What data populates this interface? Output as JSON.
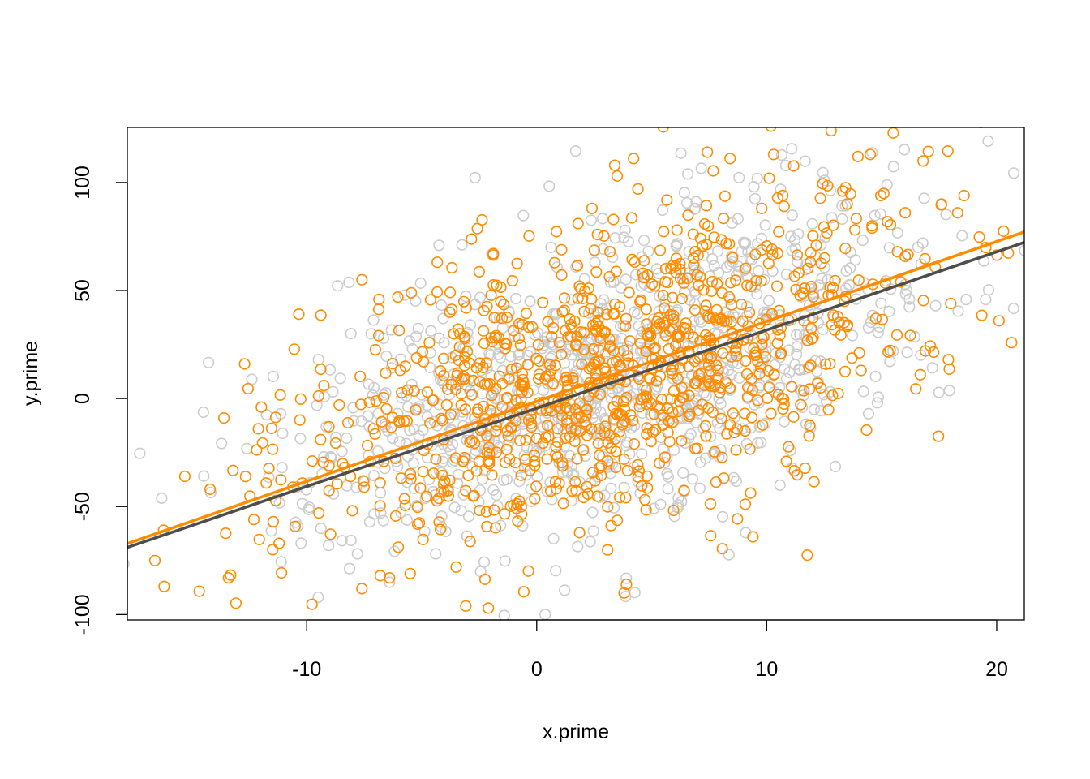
{
  "chart_data": {
    "type": "scatter",
    "title": "",
    "xlabel": "x.prime",
    "ylabel": "y.prime",
    "xlim": [
      -17.8,
      21.2
    ],
    "ylim": [
      -102.5,
      125.5
    ],
    "x_ticks": [
      -10,
      0,
      10,
      20
    ],
    "y_ticks": [
      -100,
      -50,
      0,
      50,
      100
    ],
    "grid": false,
    "legend": "none",
    "series": [
      {
        "color": "#cccccc",
        "marker": "open-circle",
        "n_points": 1000,
        "center": [
          3.2,
          12
        ],
        "sd": [
          6.8,
          40
        ],
        "correlation": 0.55,
        "seed": 7,
        "fit_line": {
          "slope": 3.62,
          "intercept": -4.5,
          "color": "#4d4d4d"
        }
      },
      {
        "color": "#ff8c00",
        "marker": "open-circle",
        "n_points": 1000,
        "center": [
          3.2,
          12
        ],
        "sd": [
          6.8,
          40
        ],
        "correlation": 0.52,
        "seed": 31,
        "fit_line": {
          "slope": 3.7,
          "intercept": -1.3,
          "color": "#ff8c00"
        },
        "extra_points": [
          [
            -16.6,
            -75
          ],
          [
            -16.2,
            -87
          ],
          [
            -15.3,
            -36
          ],
          [
            -14.2,
            -42
          ],
          [
            -13.6,
            -9
          ],
          [
            -13.4,
            -83
          ],
          [
            -12.7,
            16
          ],
          [
            -12.3,
            -56
          ],
          [
            -12.1,
            -14
          ],
          [
            -11.2,
            -67
          ],
          [
            -10.6,
            -41
          ],
          [
            -7.6,
            55
          ],
          [
            -7.6,
            -88
          ],
          [
            -6.8,
            -82
          ],
          [
            -6.4,
            -83
          ],
          [
            -5.5,
            -81
          ],
          [
            -3.5,
            -78
          ],
          [
            -2.1,
            -97
          ],
          [
            1.8,
            81
          ],
          [
            2.4,
            88
          ],
          [
            3.5,
            103
          ],
          [
            4.4,
            97
          ],
          [
            3.9,
            -86
          ],
          [
            3.8,
            -90
          ],
          [
            6.1,
            78
          ],
          [
            9.4,
            -64
          ],
          [
            10.3,
            113
          ],
          [
            10.7,
            94
          ],
          [
            12.8,
            124
          ],
          [
            13.3,
            96
          ],
          [
            14.5,
            113
          ],
          [
            15.5,
            123
          ],
          [
            16.8,
            110
          ],
          [
            17.6,
            90
          ],
          [
            18.3,
            86
          ],
          [
            20.1,
            36
          ],
          [
            17.9,
            18
          ],
          [
            16.9,
            22
          ],
          [
            18.0,
            44
          ],
          [
            14.1,
            13
          ]
        ]
      }
    ]
  }
}
